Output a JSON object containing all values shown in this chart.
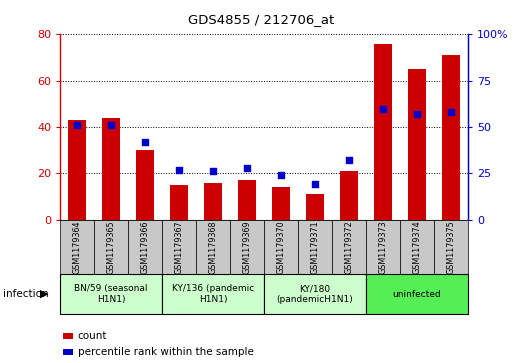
{
  "title": "GDS4855 / 212706_at",
  "samples": [
    "GSM1179364",
    "GSM1179365",
    "GSM1179366",
    "GSM1179367",
    "GSM1179368",
    "GSM1179369",
    "GSM1179370",
    "GSM1179371",
    "GSM1179372",
    "GSM1179373",
    "GSM1179374",
    "GSM1179375"
  ],
  "counts": [
    43,
    44,
    30,
    15,
    16,
    17,
    14,
    11,
    21,
    76,
    65,
    71
  ],
  "percentiles": [
    51,
    51,
    42,
    27,
    26,
    28,
    24,
    19,
    32,
    60,
    57,
    58
  ],
  "bar_color": "#cc0000",
  "dot_color": "#0000cc",
  "left_ylim": [
    0,
    80
  ],
  "right_ylim": [
    0,
    100
  ],
  "left_yticks": [
    0,
    20,
    40,
    60,
    80
  ],
  "right_yticks": [
    0,
    25,
    50,
    75,
    100
  ],
  "right_yticklabels": [
    "0",
    "25",
    "50",
    "75",
    "100%"
  ],
  "groups": [
    {
      "label": "BN/59 (seasonal\nH1N1)",
      "indices": [
        0,
        1,
        2
      ],
      "color": "#ccffcc"
    },
    {
      "label": "KY/136 (pandemic\nH1N1)",
      "indices": [
        3,
        4,
        5
      ],
      "color": "#ccffcc"
    },
    {
      "label": "KY/180\n(pandemicH1N1)",
      "indices": [
        6,
        7,
        8
      ],
      "color": "#ccffcc"
    },
    {
      "label": "uninfected",
      "indices": [
        9,
        10,
        11
      ],
      "color": "#55ee55"
    }
  ],
  "sample_box_color": "#c8c8c8",
  "infection_label": "infection",
  "legend_count_label": "count",
  "legend_percentile_label": "percentile rank within the sample",
  "bar_width": 0.55
}
